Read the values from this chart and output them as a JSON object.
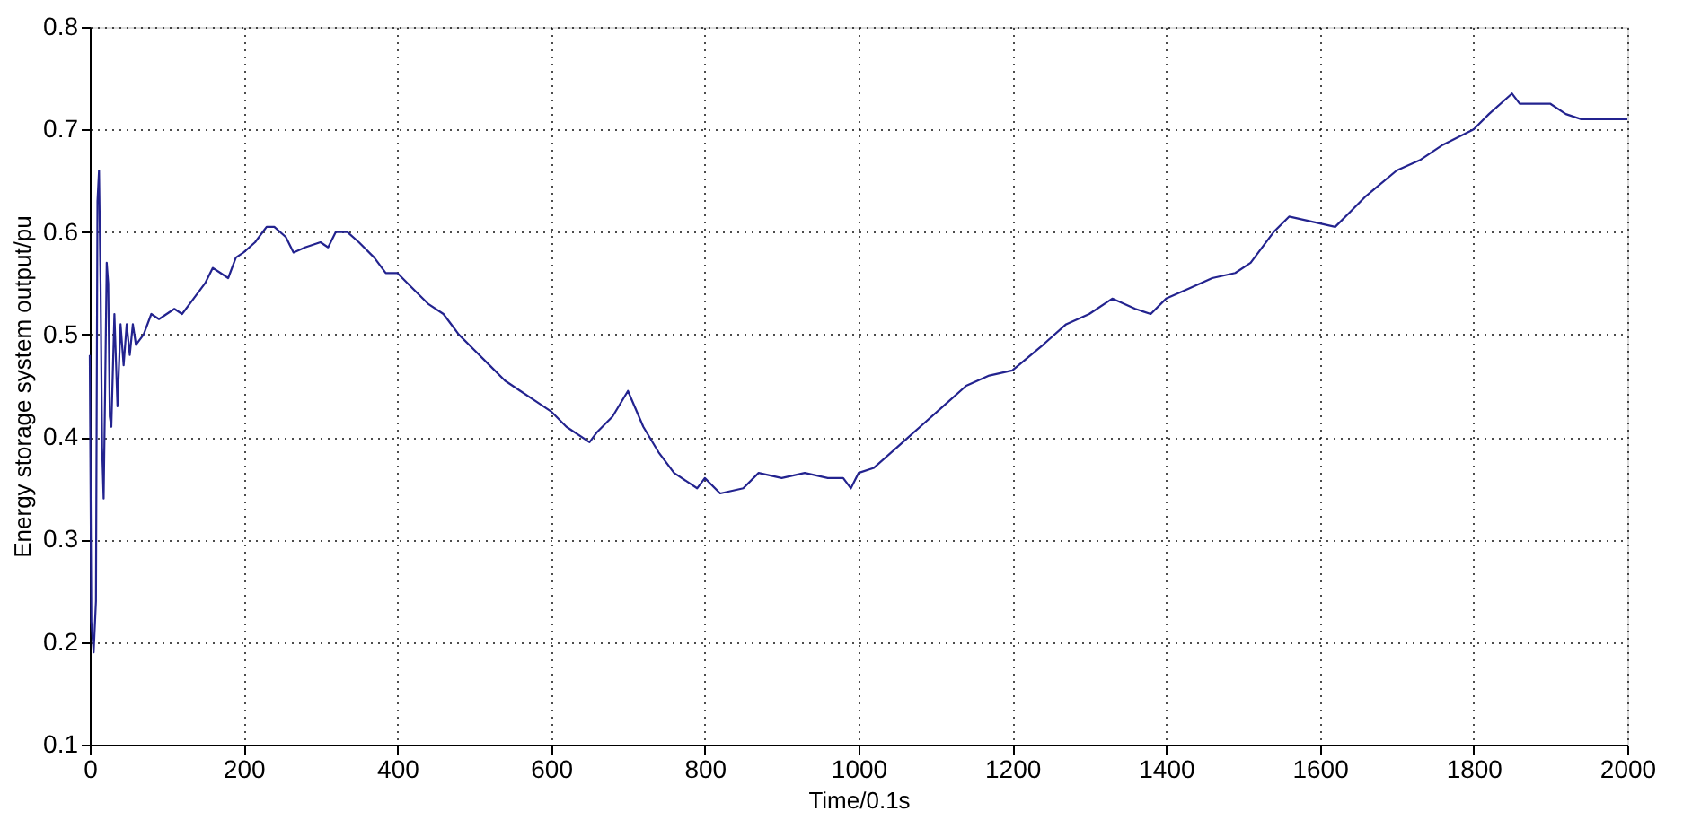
{
  "chart_data": {
    "type": "line",
    "xlabel": "Time/0.1s",
    "ylabel": "Energy storage system output/pu",
    "xlim": [
      0,
      2000
    ],
    "ylim": [
      0.1,
      0.8
    ],
    "xticks": [
      0,
      200,
      400,
      600,
      800,
      1000,
      1200,
      1400,
      1600,
      1800,
      2000
    ],
    "yticks": [
      0.1,
      0.2,
      0.3,
      0.4,
      0.5,
      0.6,
      0.7,
      0.8
    ],
    "grid": true,
    "marker": "none",
    "line_style": "solid",
    "series": [
      {
        "color": "#23238f",
        "x": [
          0,
          2,
          5,
          8,
          10,
          12,
          14,
          16,
          18,
          20,
          22,
          24,
          26,
          28,
          32,
          36,
          40,
          44,
          48,
          52,
          56,
          60,
          70,
          80,
          90,
          100,
          110,
          120,
          130,
          140,
          150,
          160,
          170,
          180,
          190,
          200,
          215,
          230,
          240,
          255,
          265,
          280,
          300,
          310,
          320,
          335,
          350,
          370,
          385,
          400,
          420,
          440,
          460,
          480,
          500,
          520,
          540,
          560,
          580,
          600,
          620,
          650,
          660,
          680,
          700,
          720,
          740,
          760,
          790,
          800,
          820,
          850,
          870,
          900,
          930,
          960,
          980,
          990,
          1000,
          1020,
          1050,
          1080,
          1110,
          1140,
          1170,
          1200,
          1240,
          1270,
          1300,
          1330,
          1360,
          1380,
          1400,
          1430,
          1460,
          1490,
          1510,
          1540,
          1560,
          1590,
          1620,
          1640,
          1660,
          1700,
          1730,
          1760,
          1800,
          1820,
          1850,
          1860,
          1900,
          1920,
          1940,
          2000
        ],
        "values": [
          0.48,
          0.22,
          0.19,
          0.24,
          0.63,
          0.66,
          0.55,
          0.39,
          0.34,
          0.45,
          0.57,
          0.55,
          0.42,
          0.41,
          0.52,
          0.43,
          0.51,
          0.47,
          0.51,
          0.48,
          0.51,
          0.49,
          0.5,
          0.52,
          0.515,
          0.52,
          0.525,
          0.52,
          0.53,
          0.54,
          0.55,
          0.565,
          0.56,
          0.555,
          0.575,
          0.58,
          0.59,
          0.605,
          0.605,
          0.595,
          0.58,
          0.585,
          0.59,
          0.585,
          0.6,
          0.6,
          0.59,
          0.575,
          0.56,
          0.56,
          0.545,
          0.53,
          0.52,
          0.5,
          0.485,
          0.47,
          0.455,
          0.445,
          0.435,
          0.425,
          0.41,
          0.395,
          0.405,
          0.42,
          0.445,
          0.41,
          0.385,
          0.365,
          0.35,
          0.36,
          0.345,
          0.35,
          0.365,
          0.36,
          0.365,
          0.36,
          0.36,
          0.35,
          0.365,
          0.37,
          0.39,
          0.41,
          0.43,
          0.45,
          0.46,
          0.465,
          0.49,
          0.51,
          0.52,
          0.535,
          0.525,
          0.52,
          0.535,
          0.545,
          0.555,
          0.56,
          0.57,
          0.6,
          0.615,
          0.61,
          0.605,
          0.62,
          0.635,
          0.66,
          0.67,
          0.685,
          0.7,
          0.715,
          0.735,
          0.725,
          0.725,
          0.715,
          0.71,
          0.71
        ]
      }
    ]
  }
}
